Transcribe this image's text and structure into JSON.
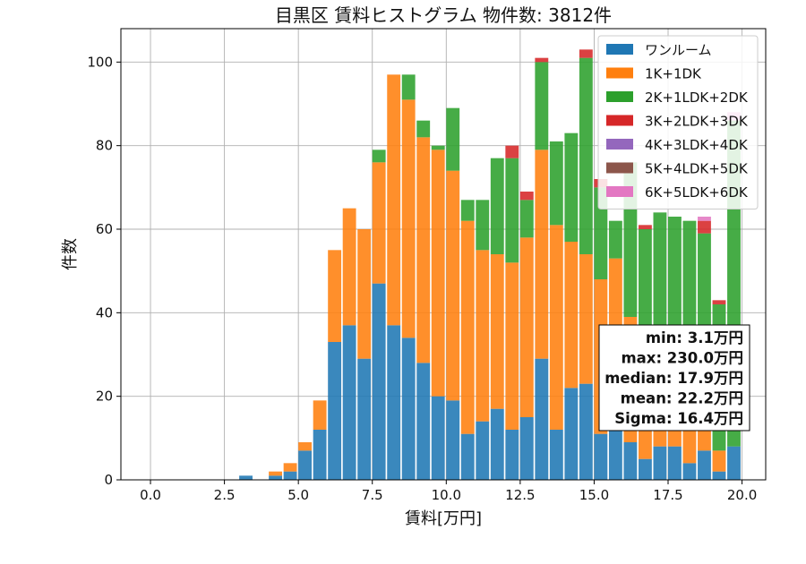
{
  "chart_data": {
    "type": "bar",
    "stacked": true,
    "title": "目黒区 賃料ヒストグラム 物件数: 3812件",
    "xlabel": "賃料[万円]",
    "ylabel": "件数",
    "xlim": [
      -1.0,
      20.8
    ],
    "ylim": [
      0,
      108
    ],
    "bin_width": 0.5,
    "grid": true,
    "legend_position": "top-right",
    "xticks": [
      "0.0",
      "2.5",
      "5.0",
      "7.5",
      "10.0",
      "12.5",
      "15.0",
      "17.5",
      "20.0"
    ],
    "yticks": [
      "0",
      "20",
      "40",
      "60",
      "80",
      "100"
    ],
    "x": [
      3.0,
      3.5,
      4.0,
      4.5,
      5.0,
      5.5,
      6.0,
      6.5,
      7.0,
      7.5,
      8.0,
      8.5,
      9.0,
      9.5,
      10.0,
      10.5,
      11.0,
      11.5,
      12.0,
      12.5,
      13.0,
      13.5,
      14.0,
      14.5,
      15.0,
      15.5,
      16.0,
      16.5,
      17.0,
      17.5,
      18.0,
      18.5,
      19.0,
      19.5
    ],
    "series": [
      {
        "name": "ワンルーム",
        "color": "#1f77b4",
        "values": [
          1,
          0,
          1,
          2,
          7,
          12,
          33,
          37,
          29,
          47,
          37,
          34,
          28,
          20,
          19,
          11,
          14,
          17,
          12,
          15,
          29,
          12,
          22,
          23,
          11,
          13,
          9,
          5,
          8,
          8,
          4,
          7,
          2,
          8
        ]
      },
      {
        "name": "1K+1DK",
        "color": "#ff7f0e",
        "values": [
          0,
          0,
          1,
          2,
          2,
          7,
          22,
          28,
          31,
          29,
          60,
          57,
          54,
          59,
          55,
          51,
          41,
          37,
          40,
          43,
          50,
          49,
          35,
          31,
          37,
          40,
          30,
          10,
          8,
          11,
          10,
          13,
          5,
          0
        ]
      },
      {
        "name": "2K+1LDK+2DK",
        "color": "#2ca02c",
        "values": [
          0,
          0,
          0,
          0,
          0,
          0,
          0,
          0,
          0,
          3,
          0,
          6,
          4,
          1,
          15,
          5,
          12,
          23,
          25,
          9,
          21,
          20,
          26,
          47,
          22,
          9,
          37,
          45,
          48,
          44,
          48,
          39,
          35,
          78
        ]
      },
      {
        "name": "3K+2LDK+3DK",
        "color": "#d62728",
        "values": [
          0,
          0,
          0,
          0,
          0,
          0,
          0,
          0,
          0,
          0,
          0,
          0,
          0,
          0,
          0,
          0,
          0,
          0,
          3,
          2,
          1,
          0,
          0,
          2,
          2,
          0,
          0,
          1,
          0,
          0,
          0,
          3,
          1,
          0
        ]
      },
      {
        "name": "4K+3LDK+4DK",
        "color": "#9467bd",
        "values": [
          0,
          0,
          0,
          0,
          0,
          0,
          0,
          0,
          0,
          0,
          0,
          0,
          0,
          0,
          0,
          0,
          0,
          0,
          0,
          0,
          0,
          0,
          0,
          0,
          0,
          0,
          0,
          0,
          0,
          0,
          0,
          0,
          0,
          0
        ]
      },
      {
        "name": "5K+4LDK+5DK",
        "color": "#8c564b",
        "values": [
          0,
          0,
          0,
          0,
          0,
          0,
          0,
          0,
          0,
          0,
          0,
          0,
          0,
          0,
          0,
          0,
          0,
          0,
          0,
          0,
          0,
          0,
          0,
          0,
          0,
          0,
          0,
          0,
          0,
          0,
          0,
          0,
          0,
          0
        ]
      },
      {
        "name": "6K+5LDK+6DK",
        "color": "#e377c2",
        "values": [
          0,
          0,
          0,
          0,
          0,
          0,
          0,
          0,
          0,
          0,
          0,
          0,
          0,
          0,
          0,
          0,
          0,
          0,
          0,
          0,
          0,
          0,
          0,
          0,
          0,
          0,
          0,
          0,
          0,
          0,
          0,
          1,
          0,
          2
        ]
      }
    ],
    "stats": [
      "min: 3.1万円",
      "max: 230.0万円",
      "median: 17.9万円",
      "mean: 22.2万円",
      "Sigma: 16.4万円"
    ]
  }
}
